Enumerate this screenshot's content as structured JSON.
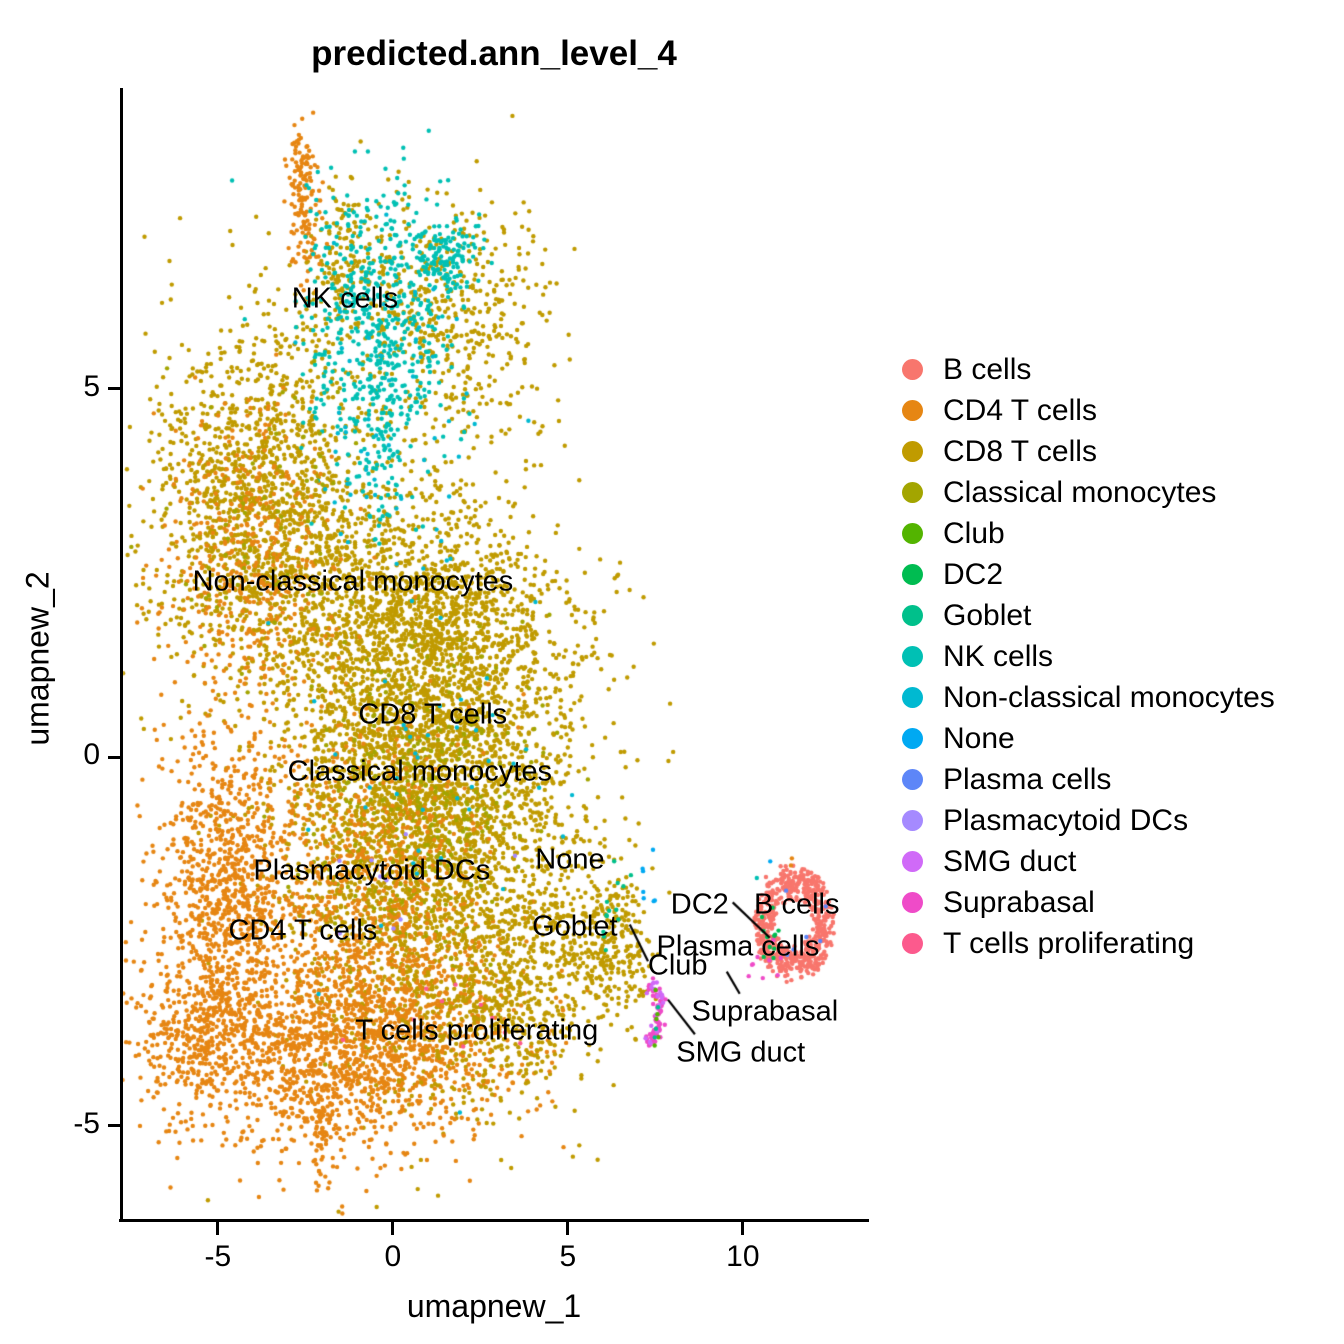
{
  "title": "predicted.ann_level_4",
  "axes": {
    "x": {
      "label": "umapnew_1",
      "ticks": [
        -5,
        0,
        5,
        10
      ],
      "range": [
        -7.71,
        13.49
      ]
    },
    "y": {
      "label": "umapnew_2",
      "ticks": [
        -5,
        0,
        5
      ],
      "range": [
        -6.28,
        9.08
      ]
    }
  },
  "chart_data": {
    "type": "scatter",
    "title": "predicted.ann_level_4",
    "xlabel": "umapnew_1",
    "ylabel": "umapnew_2",
    "xlim": [
      -7.71,
      13.49
    ],
    "ylim": [
      -6.28,
      9.08
    ],
    "grid": false,
    "legend_position": "right",
    "point_radius_px": 2.2,
    "seed": 42,
    "classes": [
      {
        "name": "B cells",
        "color": "#F8766D"
      },
      {
        "name": "CD4 T cells",
        "color": "#E68613"
      },
      {
        "name": "CD8 T cells",
        "color": "#C09B00"
      },
      {
        "name": "Classical monocytes",
        "color": "#A3A500"
      },
      {
        "name": "Club",
        "color": "#53B400"
      },
      {
        "name": "DC2",
        "color": "#00BC51"
      },
      {
        "name": "Goblet",
        "color": "#00C08B"
      },
      {
        "name": "NK cells",
        "color": "#00C0B4"
      },
      {
        "name": "Non-classical monocytes",
        "color": "#00B9D1"
      },
      {
        "name": "None",
        "color": "#00A9F2"
      },
      {
        "name": "Plasma cells",
        "color": "#5D86F8"
      },
      {
        "name": "Plasmacytoid DCs",
        "color": "#A58AFF"
      },
      {
        "name": "SMG duct",
        "color": "#D06AF8"
      },
      {
        "name": "Suprabasal",
        "color": "#EF4BC8"
      },
      {
        "name": "T cells proliferating",
        "color": "#FC5A8D"
      }
    ],
    "clusters": [
      {
        "class": "CD8 T cells",
        "shape": "gauss",
        "cx": 0.91,
        "cy": -0.3,
        "sx": 2.06,
        "sy": 1.77,
        "n": 4200
      },
      {
        "class": "CD8 T cells",
        "shape": "gauss",
        "cx": 0.77,
        "cy": 2.01,
        "sx": 2.29,
        "sy": 0.61,
        "n": 700
      },
      {
        "class": "CD8 T cells",
        "shape": "gauss",
        "cx": -3.74,
        "cy": 3.37,
        "sx": 1.57,
        "sy": 1.22,
        "n": 1500
      },
      {
        "class": "CD4 T cells",
        "shape": "gauss",
        "cx": -4.14,
        "cy": 2.69,
        "sx": 1.29,
        "sy": 1.02,
        "n": 420
      },
      {
        "class": "CD8 T cells",
        "shape": "gauss",
        "cx": 0.2,
        "cy": 6.22,
        "sx": 1.57,
        "sy": 0.88,
        "n": 380
      },
      {
        "class": "CD8 T cells",
        "shape": "gauss",
        "cx": -1.37,
        "cy": 6.77,
        "sx": 0.34,
        "sy": 0.48,
        "n": 90
      },
      {
        "class": "CD8 T cells",
        "shape": "gauss",
        "cx": 2.49,
        "cy": 5.82,
        "sx": 1.0,
        "sy": 0.82,
        "n": 220
      },
      {
        "class": "CD4 T cells",
        "shape": "gauss",
        "cx": -2.6,
        "cy": 7.79,
        "sx": 0.2,
        "sy": 0.38,
        "n": 110
      },
      {
        "class": "CD4 T cells",
        "shape": "gauss",
        "cx": -2.46,
        "cy": 6.83,
        "sx": 0.2,
        "sy": 0.3,
        "n": 40
      },
      {
        "class": "NK cells",
        "shape": "gauss",
        "cx": -0.57,
        "cy": 5.82,
        "sx": 1.05,
        "sy": 0.95,
        "n": 520
      },
      {
        "class": "NK cells",
        "shape": "gauss",
        "cx": 1.54,
        "cy": 6.74,
        "sx": 0.46,
        "sy": 0.3,
        "n": 140
      },
      {
        "class": "NK cells",
        "shape": "gauss",
        "cx": -0.29,
        "cy": 4.18,
        "sx": 0.29,
        "sy": 0.75,
        "n": 70
      },
      {
        "class": "Non-classical monocytes",
        "shape": "gauss",
        "cx": -0.09,
        "cy": 4.59,
        "sx": 1.29,
        "sy": 1.29,
        "n": 55
      },
      {
        "class": "Classical monocytes",
        "shape": "gauss",
        "cx": 0.77,
        "cy": -0.57,
        "sx": 1.57,
        "sy": 1.09,
        "n": 320
      },
      {
        "class": "Classical monocytes",
        "shape": "gauss",
        "cx": -3.74,
        "cy": 3.23,
        "sx": 1.43,
        "sy": 1.09,
        "n": 60
      },
      {
        "class": "CD4 T cells",
        "shape": "gauss",
        "cx": -4.8,
        "cy": -1.66,
        "sx": 0.91,
        "sy": 1.09,
        "n": 900
      },
      {
        "class": "CD4 T cells",
        "shape": "gauss",
        "cx": -1.23,
        "cy": -3.9,
        "sx": 2.43,
        "sy": 0.68,
        "n": 1500
      },
      {
        "class": "CD4 T cells",
        "shape": "gauss",
        "cx": -5.66,
        "cy": -3.76,
        "sx": 0.86,
        "sy": 0.61,
        "n": 350
      },
      {
        "class": "CD4 T cells",
        "shape": "gauss",
        "cx": -2.06,
        "cy": -5.12,
        "sx": 0.17,
        "sy": 0.34,
        "n": 60
      },
      {
        "class": "CD4 T cells",
        "shape": "gauss",
        "cx": -0.66,
        "cy": -1.93,
        "sx": 1.71,
        "sy": 1.29,
        "n": 800
      },
      {
        "class": "CD8 T cells",
        "shape": "gauss",
        "cx": 3.06,
        "cy": -3.42,
        "sx": 1.29,
        "sy": 0.61,
        "n": 420
      },
      {
        "class": "CD8 T cells",
        "shape": "gauss",
        "cx": 4.63,
        "cy": -2.34,
        "sx": 0.71,
        "sy": 0.68,
        "n": 130
      },
      {
        "class": "CD8 T cells",
        "shape": "gauss",
        "cx": 6.34,
        "cy": -2.54,
        "sx": 0.49,
        "sy": 0.57,
        "n": 260
      },
      {
        "class": "Goblet",
        "shape": "gauss",
        "cx": 6.26,
        "cy": -2.0,
        "sx": 0.29,
        "sy": 0.41,
        "n": 13
      },
      {
        "class": "None",
        "shape": "gauss",
        "cx": 7.29,
        "cy": -1.66,
        "sx": 0.29,
        "sy": 0.27,
        "n": 7
      },
      {
        "class": "Non-classical monocytes",
        "shape": "gauss",
        "cx": 1.06,
        "cy": -0.03,
        "sx": 2.0,
        "sy": 1.63,
        "n": 45
      },
      {
        "class": "Plasmacytoid DCs",
        "shape": "gauss",
        "cx": -0.6,
        "cy": -1.66,
        "sx": 1.14,
        "sy": 0.54,
        "n": 9
      },
      {
        "class": "T cells proliferating",
        "shape": "gauss",
        "cx": 2.2,
        "cy": -3.7,
        "sx": 1.71,
        "sy": 0.41,
        "n": 10
      },
      {
        "class": "Suprabasal",
        "shape": "arc",
        "cx": 7.0,
        "cy": -3.45,
        "rx": 0.63,
        "ry": 0.49,
        "a0": -65,
        "a1": 55,
        "jx": 0.07,
        "jy": 0.05,
        "n": 85
      },
      {
        "class": "SMG duct",
        "shape": "arc",
        "cx": 7.0,
        "cy": -3.45,
        "rx": 0.63,
        "ry": 0.49,
        "a0": -65,
        "a1": 55,
        "jx": 0.08,
        "jy": 0.06,
        "n": 20
      },
      {
        "class": "Club",
        "shape": "arc",
        "cx": 7.0,
        "cy": -3.45,
        "rx": 0.63,
        "ry": 0.49,
        "a0": -60,
        "a1": 50,
        "jx": 0.08,
        "jy": 0.06,
        "n": 5
      },
      {
        "class": "Goblet",
        "shape": "arc",
        "cx": 7.0,
        "cy": -3.45,
        "rx": 0.63,
        "ry": 0.49,
        "a0": -55,
        "a1": 45,
        "jx": 0.08,
        "jy": 0.06,
        "n": 3
      },
      {
        "class": "B cells",
        "shape": "ring",
        "cx": 11.46,
        "cy": -2.26,
        "rx": 1.14,
        "ry": 0.76,
        "inner": 0.5,
        "n": 620
      },
      {
        "class": "DC2",
        "shape": "gauss",
        "cx": 10.77,
        "cy": -2.45,
        "sx": 0.2,
        "sy": 0.22,
        "n": 11
      },
      {
        "class": "Plasma cells",
        "shape": "gauss",
        "cx": 11.34,
        "cy": -2.27,
        "sx": 0.43,
        "sy": 0.34,
        "n": 6
      },
      {
        "class": "Suprabasal",
        "shape": "gauss",
        "cx": 10.71,
        "cy": -2.81,
        "sx": 0.29,
        "sy": 0.19,
        "n": 9
      },
      {
        "class": "None",
        "shape": "gauss",
        "cx": 10.83,
        "cy": -1.48,
        "sx": 0.03,
        "sy": 0.03,
        "n": 1
      },
      {
        "class": "NK cells",
        "shape": "gauss",
        "cx": 10.4,
        "cy": -1.62,
        "sx": 0.03,
        "sy": 0.03,
        "n": 1
      },
      {
        "class": "CD4 T cells",
        "shape": "gauss",
        "cx": 11.4,
        "cy": -1.45,
        "sx": 0.1,
        "sy": 0.05,
        "n": 2
      }
    ],
    "labels": [
      {
        "text": "NK cells",
        "x": -1.37,
        "y": 6.22
      },
      {
        "text": "Non-classical monocytes",
        "x": -1.14,
        "y": 2.38
      },
      {
        "text": "CD8 T cells",
        "x": 1.14,
        "y": 0.57
      },
      {
        "text": "Classical monocytes",
        "x": 0.77,
        "y": -0.2
      },
      {
        "text": "Plasmacytoid DCs",
        "x": -0.6,
        "y": -1.54
      },
      {
        "text": "None",
        "x": 5.06,
        "y": -1.39
      },
      {
        "text": "CD4 T cells",
        "x": -2.57,
        "y": -2.36
      },
      {
        "text": "Goblet",
        "x": 5.2,
        "y": -2.31
      },
      {
        "text": "Club",
        "x": 8.14,
        "y": -2.84
      },
      {
        "text": "DC2",
        "x": 8.77,
        "y": -2.0
      },
      {
        "text": "B cells",
        "x": 11.54,
        "y": -2.01
      },
      {
        "text": "Plasma cells",
        "x": 9.86,
        "y": -2.58
      },
      {
        "text": "Suprabasal",
        "x": 10.63,
        "y": -3.46
      },
      {
        "text": "SMG duct",
        "x": 9.94,
        "y": -4.02
      },
      {
        "text": "T cells proliferating",
        "x": 2.4,
        "y": -3.71
      }
    ],
    "leader_lines": [
      {
        "x1": 6.77,
        "y1": -2.27,
        "x2": 7.29,
        "y2": -2.77
      },
      {
        "x1": 9.71,
        "y1": -1.97,
        "x2": 10.77,
        "y2": -2.45
      },
      {
        "x1": 9.54,
        "y1": -2.91,
        "x2": 9.91,
        "y2": -3.21
      },
      {
        "x1": 7.86,
        "y1": -3.29,
        "x2": 8.63,
        "y2": -3.76
      }
    ]
  }
}
